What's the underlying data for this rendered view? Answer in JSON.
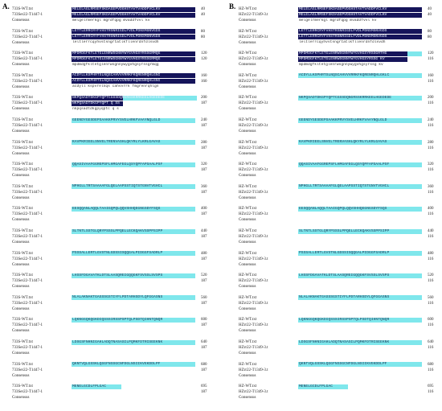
{
  "panels": [
    {
      "label": "A.",
      "names": [
        "733S-WT.txt",
        "733Ser22-T1447-1",
        "Consensus"
      ],
      "blocks": [
        {
          "style": "dark",
          "seq1": "MELELAGLRMSEFSKDAGEPVDGHSTAVTVADDFVCLKV",
          "seq2": "MELELAGLRMSEFSKDAGEPVDGHSTAVTVADDFVCLKV",
          "cons": "melgelrmerkgl mgrdfqpg mvaddfvvl kv",
          "n1": "40",
          "n2": "40"
        },
        {
          "style": "dark",
          "seq1": "LETTLERRCRYFVHSTRSNRIGDLFVDLPDNSMSNVGDS",
          "seq2": "LETTLERRCRYFVHSTRSNRIGDLFVDLPDNSMSNVGDS",
          "cons": "leltlerrcqyhvstsngrtatlkfllenrdnfdlsvdh",
          "n1": "80",
          "n2": "80"
        },
        {
          "style": "dark",
          "seq1": "MPDMDGFKTLETGLENRWSGNNYWYGVHGSYRSSGRMQG",
          "seq2": "MPDMDGFKTLETGLENRWSGNNYWYGVHGSYRSSGRMQG",
          "cons": "mpdmdgfkltetglenrwsgnnywygvhgsyrssgrmqg",
          "n1": "120",
          "n2": "120"
        },
        {
          "style": "dark",
          "seq1": "ACDYLLKSPHRTSLNQSCAHVVVRRKFKQRENRQHLGNI",
          "seq2": "ACDYLLKSPHRTSLNQSCAHVVVRRKFKQRENRQHLGNI",
          "cons": "acdyll kspvrelnqs cahvvrrk fmgrenrqhlgn",
          "n1": "160",
          "n2": "160"
        },
        {
          "style": "mixed",
          "seq1": "NKPQSADTDKGPYQPTCGSSDQNGRSSKRRKEELHGEDEDE",
          "seq2": "NKPQSADTDKGPYQPT Q SS",
          "cons": "nkpqsadtdkgpyqptc  q  s",
          "n1": "200",
          "n2": "187"
        },
        {
          "style": "cyan",
          "seq1": "GEENDYGESDEPSAAKKPRVYSVELHRKFVAAYNQLGLD",
          "seq2": "",
          "cons": "",
          "n1": "240",
          "n2": "187"
        },
        {
          "style": "cyan",
          "seq1": "KAVPKRIEELSNVELTRENVASHLQKYRLYLKRLGAVAS",
          "seq2": "",
          "cons": "",
          "n1": "280",
          "n2": "187"
        },
        {
          "style": "cyan",
          "seq1": "QQASIVAAFGGREPSFLHMGAFEGLQSYQPFAPSAALPSF",
          "seq2": "",
          "cons": "",
          "n1": "320",
          "n2": "187"
        },
        {
          "style": "cyan",
          "seq1": "NPHGLLTRTSAAAAFGLQELAAPSSTIQTSTGNVTVGHCL",
          "seq2": "",
          "cons": "",
          "n1": "360",
          "n2": "187"
        },
        {
          "style": "cyan",
          "seq1": "EESQQANLAQQLTAAIGQPQLQQVSHHQEGNGSDYFSQS",
          "seq2": "",
          "cons": "",
          "n1": "400",
          "n2": "187"
        },
        {
          "style": "cyan",
          "seq1": "SLTNTLSSTGLQRYPSSSLPPQELLECKQAKVSSPPSIPP",
          "seq2": "",
          "cons": "",
          "n1": "440",
          "n2": "187"
        },
        {
          "style": "cyan",
          "seq1": "PSSSALLERTLGVSTNLGDSSISQQGALPIDGGFSADRLP",
          "seq2": "",
          "cons": "",
          "n1": "480",
          "n2": "187"
        },
        {
          "style": "cyan",
          "seq1": "LHSSFDGAVATKLDTSLAASQREIGQQGKFSVSSLSVSPS",
          "seq2": "",
          "cons": "",
          "n1": "520",
          "n2": "187"
        },
        {
          "style": "cyan",
          "seq1": "NLALAKNAKTGASSSGSTIYFLPDTARHSDYLQFGGASNS",
          "seq2": "",
          "cons": "",
          "n1": "560",
          "n2": "187"
        },
        {
          "style": "cyan",
          "seq1": "LQKNGGQKQGKDIQSSSIRSSPSPTQLPSDTQIHNTQNQR",
          "seq2": "",
          "cons": "",
          "n1": "600",
          "n2": "187"
        },
        {
          "style": "cyan",
          "seq1": "LDSGSFNHNIGAHLADQTNASASILPQMKFDTRISEEKNK",
          "seq2": "",
          "cons": "",
          "n1": "640",
          "n2": "187"
        },
        {
          "style": "cyan",
          "seq1": "QKNTVQLGSSKLQGGFNSSGCNFDGLNSIIKVEKDDLPF",
          "seq2": "",
          "cons": "",
          "n1": "680",
          "n2": "187"
        },
        {
          "style": "cyanshort",
          "seq1": "MENELGCDLFPLGAC",
          "seq2": "",
          "cons": "",
          "n1": "695",
          "n2": "187"
        }
      ]
    },
    {
      "label": "B.",
      "names": [
        "HZ-WT.txt",
        "HZrr22-T1349-3.t",
        "Consensus"
      ],
      "blocks": [
        {
          "style": "dark",
          "seq1": "MELELAGLRMSEFSKDAGEPVDGHSTAVTVADDFVCLKV",
          "seq2": "MELELAGLRMSEFSKDAGEPVDGHSTAVTVADDFVCLKV",
          "cons": "melgelrmerkgl mgrdfqpg mvaddfvvl kv",
          "n1": "40",
          "n2": "40"
        },
        {
          "style": "dark",
          "seq1": "LETTLERRCRYFVHSTRSNRIGDLFVDLPDNSMSNVGDS",
          "seq2": "LETTLERRCRYFVHSTRSNRIGDLFVDLPDNSMSNVGDS",
          "cons": "leltlerrcqyhvstsngrtatlkfllenrdnfdlsvdh",
          "n1": "80",
          "n2": "80"
        },
        {
          "style": "mixedB",
          "seq1": "MPDMDGFKTLETGLENRWSGNNYWYGVHGSYRSSGRTHG",
          "seq2": "MPDMDGFKTLETGLENRWSGNNYWYGVHGSYRSSG KV",
          "cons": "mpdmdgfkltetglenrwsgnnywygvhgsyrssg kv",
          "n1": "120",
          "n2": "116"
        },
        {
          "style": "cyan",
          "seq1": "ACDYLLKSPHRTSLNQSCAHVVVRRKFKQRENRQHLGKLC",
          "seq2": "",
          "cons": "",
          "n1": "160",
          "n2": "116"
        },
        {
          "style": "cyan",
          "seq1": "NKPQSADTDKGPYQPTCGSSDQNGRSSKRRKEELHGEDEDE",
          "seq2": "",
          "cons": "",
          "n1": "200",
          "n2": "116"
        },
        {
          "style": "cyan",
          "seq1": "GEENDYGESDEPSAAKKPRVYSVELHRKFVAAYNQLGLD",
          "seq2": "",
          "cons": "",
          "n1": "240",
          "n2": "116"
        },
        {
          "style": "cyan",
          "seq1": "KAVPKRIEELSNVELTRENVASHLQKYRLYLKRLGAVAS",
          "seq2": "",
          "cons": "",
          "n1": "280",
          "n2": "116"
        },
        {
          "style": "cyan",
          "seq1": "QQASIVAAFGGREPSFLHMGAFEGLQSYQPFAPSAALPSF",
          "seq2": "",
          "cons": "",
          "n1": "320",
          "n2": "116"
        },
        {
          "style": "cyan",
          "seq1": "NPHGLLTRTSAAAAFGLQELAAPSSTIQTSTGNVTVGHCL",
          "seq2": "",
          "cons": "",
          "n1": "360",
          "n2": "116"
        },
        {
          "style": "cyan",
          "seq1": "EESQQANLAQQLTAAIGQPQLQQVSHHQEGNGSDYFSQS",
          "seq2": "",
          "cons": "",
          "n1": "400",
          "n2": "116"
        },
        {
          "style": "cyan",
          "seq1": "SLTNTLSSTGLQRYPSSSLPPQELLECKQAKVSSPPSIPP",
          "seq2": "",
          "cons": "",
          "n1": "440",
          "n2": "116"
        },
        {
          "style": "cyan",
          "seq1": "PSSSALLERTLGVSTNLGDSSISQQGALPIDGGFSADRLP",
          "seq2": "",
          "cons": "",
          "n1": "480",
          "n2": "116"
        },
        {
          "style": "cyan",
          "seq1": "LHSSFDGAVATKLDTSLAASQREIGQQGKFSVSSLSVSPS",
          "seq2": "",
          "cons": "",
          "n1": "520",
          "n2": "116"
        },
        {
          "style": "cyan",
          "seq1": "NLALAKNAKTGASSSGSTIYFLPDTARHSDYLQFGGASNS",
          "seq2": "",
          "cons": "",
          "n1": "560",
          "n2": "116"
        },
        {
          "style": "cyan",
          "seq1": "LQKNGGQKQGKDIQSSSIRSSPSPTQLPSDTQIHNTQNQR",
          "seq2": "",
          "cons": "",
          "n1": "600",
          "n2": "116"
        },
        {
          "style": "cyan",
          "seq1": "LDSGSFNHNIGAHLADQTNASASILPQMKFDTRISEEKNK",
          "seq2": "",
          "cons": "",
          "n1": "640",
          "n2": "116"
        },
        {
          "style": "cyan",
          "seq1": "QKNTVQLGSSKLQGGFNSSGCNFDGLNSIIKVEKDDLPF",
          "seq2": "",
          "cons": "",
          "n1": "680",
          "n2": "116"
        },
        {
          "style": "cyanshort",
          "seq1": "MENELGCDLFPLGAC",
          "seq2": "",
          "cons": "",
          "n1": "695",
          "n2": "116"
        }
      ]
    }
  ],
  "colors": {
    "identical": "#15145a",
    "consensus_only": "#7fe7ec"
  }
}
